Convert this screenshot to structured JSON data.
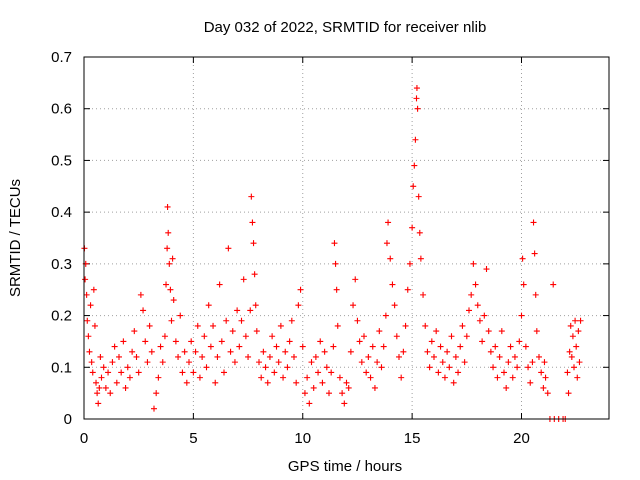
{
  "chart_data": {
    "type": "scatter",
    "title": "Day 032 of 2022, SRMTID for receiver nlib",
    "xlabel": "GPS time / hours",
    "ylabel": "SRMTID / TECUs",
    "xlim": [
      0,
      24
    ],
    "ylim": [
      0,
      0.7
    ],
    "xticks": [
      0,
      5,
      10,
      15,
      20
    ],
    "xtick_labels": [
      "0",
      "5",
      "10",
      "15",
      "20"
    ],
    "yticks": [
      0,
      0.1,
      0.2,
      0.3,
      0.4,
      0.5,
      0.6,
      0.7
    ],
    "ytick_labels": [
      "0",
      "0.1",
      "0.2",
      "0.3",
      "0.4",
      "0.5",
      "0.6",
      "0.7"
    ],
    "grid": true,
    "marker": "+",
    "color": "#ff0000",
    "series": [
      {
        "name": "SRMTID",
        "points": [
          [
            0.02,
            0.33
          ],
          [
            0.05,
            0.27
          ],
          [
            0.08,
            0.3
          ],
          [
            0.12,
            0.24
          ],
          [
            0.15,
            0.19
          ],
          [
            0.2,
            0.16
          ],
          [
            0.25,
            0.13
          ],
          [
            0.3,
            0.22
          ],
          [
            0.35,
            0.11
          ],
          [
            0.4,
            0.09
          ],
          [
            0.45,
            0.25
          ],
          [
            0.5,
            0.18
          ],
          [
            0.55,
            0.07
          ],
          [
            0.6,
            0.05
          ],
          [
            0.65,
            0.03
          ],
          [
            0.7,
            0.06
          ],
          [
            0.75,
            0.12
          ],
          [
            0.8,
            0.08
          ],
          [
            0.9,
            0.1
          ],
          [
            1.0,
            0.06
          ],
          [
            1.1,
            0.09
          ],
          [
            1.2,
            0.05
          ],
          [
            1.3,
            0.11
          ],
          [
            1.4,
            0.14
          ],
          [
            1.5,
            0.07
          ],
          [
            1.6,
            0.12
          ],
          [
            1.7,
            0.09
          ],
          [
            1.8,
            0.15
          ],
          [
            1.9,
            0.06
          ],
          [
            2.0,
            0.1
          ],
          [
            2.1,
            0.08
          ],
          [
            2.2,
            0.13
          ],
          [
            2.3,
            0.17
          ],
          [
            2.4,
            0.12
          ],
          [
            2.5,
            0.09
          ],
          [
            2.6,
            0.24
          ],
          [
            2.7,
            0.21
          ],
          [
            2.8,
            0.15
          ],
          [
            2.9,
            0.11
          ],
          [
            3.0,
            0.18
          ],
          [
            3.1,
            0.13
          ],
          [
            3.2,
            0.02
          ],
          [
            3.3,
            0.05
          ],
          [
            3.4,
            0.08
          ],
          [
            3.5,
            0.14
          ],
          [
            3.6,
            0.11
          ],
          [
            3.7,
            0.16
          ],
          [
            3.75,
            0.26
          ],
          [
            3.8,
            0.33
          ],
          [
            3.82,
            0.41
          ],
          [
            3.85,
            0.36
          ],
          [
            3.9,
            0.3
          ],
          [
            3.95,
            0.25
          ],
          [
            4.0,
            0.19
          ],
          [
            4.05,
            0.31
          ],
          [
            4.1,
            0.23
          ],
          [
            4.2,
            0.15
          ],
          [
            4.3,
            0.12
          ],
          [
            4.4,
            0.2
          ],
          [
            4.5,
            0.09
          ],
          [
            4.6,
            0.13
          ],
          [
            4.7,
            0.07
          ],
          [
            4.8,
            0.11
          ],
          [
            4.9,
            0.15
          ],
          [
            5.0,
            0.09
          ],
          [
            5.1,
            0.13
          ],
          [
            5.2,
            0.18
          ],
          [
            5.3,
            0.08
          ],
          [
            5.4,
            0.12
          ],
          [
            5.5,
            0.16
          ],
          [
            5.6,
            0.1
          ],
          [
            5.7,
            0.22
          ],
          [
            5.8,
            0.14
          ],
          [
            5.9,
            0.18
          ],
          [
            6.0,
            0.07
          ],
          [
            6.1,
            0.12
          ],
          [
            6.2,
            0.26
          ],
          [
            6.3,
            0.15
          ],
          [
            6.4,
            0.09
          ],
          [
            6.5,
            0.19
          ],
          [
            6.6,
            0.33
          ],
          [
            6.7,
            0.13
          ],
          [
            6.8,
            0.17
          ],
          [
            6.9,
            0.11
          ],
          [
            7.0,
            0.21
          ],
          [
            7.1,
            0.14
          ],
          [
            7.2,
            0.19
          ],
          [
            7.3,
            0.27
          ],
          [
            7.4,
            0.16
          ],
          [
            7.5,
            0.12
          ],
          [
            7.6,
            0.21
          ],
          [
            7.65,
            0.43
          ],
          [
            7.7,
            0.38
          ],
          [
            7.75,
            0.34
          ],
          [
            7.8,
            0.28
          ],
          [
            7.85,
            0.22
          ],
          [
            7.9,
            0.17
          ],
          [
            8.0,
            0.11
          ],
          [
            8.1,
            0.08
          ],
          [
            8.2,
            0.13
          ],
          [
            8.3,
            0.1
          ],
          [
            8.4,
            0.07
          ],
          [
            8.5,
            0.12
          ],
          [
            8.6,
            0.16
          ],
          [
            8.7,
            0.09
          ],
          [
            8.8,
            0.14
          ],
          [
            8.9,
            0.11
          ],
          [
            9.0,
            0.18
          ],
          [
            9.1,
            0.08
          ],
          [
            9.2,
            0.13
          ],
          [
            9.3,
            0.1
          ],
          [
            9.4,
            0.15
          ],
          [
            9.5,
            0.19
          ],
          [
            9.6,
            0.12
          ],
          [
            9.7,
            0.07
          ],
          [
            9.8,
            0.22
          ],
          [
            9.9,
            0.25
          ],
          [
            10.0,
            0.14
          ],
          [
            10.1,
            0.05
          ],
          [
            10.2,
            0.08
          ],
          [
            10.3,
            0.03
          ],
          [
            10.4,
            0.11
          ],
          [
            10.5,
            0.06
          ],
          [
            10.6,
            0.12
          ],
          [
            10.7,
            0.09
          ],
          [
            10.8,
            0.15
          ],
          [
            10.9,
            0.07
          ],
          [
            11.0,
            0.13
          ],
          [
            11.1,
            0.1
          ],
          [
            11.2,
            0.05
          ],
          [
            11.3,
            0.09
          ],
          [
            11.4,
            0.14
          ],
          [
            11.45,
            0.34
          ],
          [
            11.5,
            0.3
          ],
          [
            11.55,
            0.25
          ],
          [
            11.6,
            0.18
          ],
          [
            11.7,
            0.08
          ],
          [
            11.8,
            0.05
          ],
          [
            11.9,
            0.03
          ],
          [
            12.0,
            0.07
          ],
          [
            12.1,
            0.06
          ],
          [
            12.2,
            0.13
          ],
          [
            12.3,
            0.22
          ],
          [
            12.4,
            0.27
          ],
          [
            12.5,
            0.19
          ],
          [
            12.6,
            0.15
          ],
          [
            12.7,
            0.11
          ],
          [
            12.8,
            0.16
          ],
          [
            12.9,
            0.09
          ],
          [
            13.0,
            0.12
          ],
          [
            13.1,
            0.08
          ],
          [
            13.2,
            0.14
          ],
          [
            13.3,
            0.06
          ],
          [
            13.4,
            0.11
          ],
          [
            13.5,
            0.17
          ],
          [
            13.6,
            0.1
          ],
          [
            13.7,
            0.14
          ],
          [
            13.8,
            0.2
          ],
          [
            13.85,
            0.34
          ],
          [
            13.9,
            0.38
          ],
          [
            14.0,
            0.31
          ],
          [
            14.1,
            0.26
          ],
          [
            14.2,
            0.22
          ],
          [
            14.3,
            0.16
          ],
          [
            14.4,
            0.12
          ],
          [
            14.5,
            0.08
          ],
          [
            14.6,
            0.13
          ],
          [
            14.7,
            0.18
          ],
          [
            14.8,
            0.25
          ],
          [
            14.9,
            0.3
          ],
          [
            15.0,
            0.37
          ],
          [
            15.05,
            0.45
          ],
          [
            15.1,
            0.49
          ],
          [
            15.15,
            0.54
          ],
          [
            15.2,
            0.62
          ],
          [
            15.22,
            0.64
          ],
          [
            15.25,
            0.6
          ],
          [
            15.3,
            0.43
          ],
          [
            15.35,
            0.36
          ],
          [
            15.4,
            0.31
          ],
          [
            15.5,
            0.24
          ],
          [
            15.6,
            0.18
          ],
          [
            15.7,
            0.13
          ],
          [
            15.8,
            0.1
          ],
          [
            15.9,
            0.15
          ],
          [
            16.0,
            0.12
          ],
          [
            16.1,
            0.17
          ],
          [
            16.2,
            0.09
          ],
          [
            16.3,
            0.14
          ],
          [
            16.4,
            0.11
          ],
          [
            16.5,
            0.08
          ],
          [
            16.6,
            0.13
          ],
          [
            16.7,
            0.1
          ],
          [
            16.8,
            0.16
          ],
          [
            16.9,
            0.07
          ],
          [
            17.0,
            0.12
          ],
          [
            17.1,
            0.09
          ],
          [
            17.2,
            0.14
          ],
          [
            17.3,
            0.18
          ],
          [
            17.4,
            0.11
          ],
          [
            17.5,
            0.16
          ],
          [
            17.6,
            0.21
          ],
          [
            17.7,
            0.24
          ],
          [
            17.8,
            0.3
          ],
          [
            17.9,
            0.26
          ],
          [
            18.0,
            0.22
          ],
          [
            18.1,
            0.19
          ],
          [
            18.2,
            0.15
          ],
          [
            18.3,
            0.2
          ],
          [
            18.4,
            0.29
          ],
          [
            18.5,
            0.17
          ],
          [
            18.6,
            0.13
          ],
          [
            18.7,
            0.1
          ],
          [
            18.8,
            0.14
          ],
          [
            18.9,
            0.08
          ],
          [
            19.0,
            0.12
          ],
          [
            19.1,
            0.17
          ],
          [
            19.2,
            0.09
          ],
          [
            19.3,
            0.06
          ],
          [
            19.4,
            0.11
          ],
          [
            19.5,
            0.14
          ],
          [
            19.6,
            0.08
          ],
          [
            19.7,
            0.12
          ],
          [
            19.8,
            0.1
          ],
          [
            19.9,
            0.15
          ],
          [
            20.0,
            0.2
          ],
          [
            20.05,
            0.31
          ],
          [
            20.1,
            0.26
          ],
          [
            20.2,
            0.14
          ],
          [
            20.3,
            0.1
          ],
          [
            20.4,
            0.07
          ],
          [
            20.5,
            0.11
          ],
          [
            20.55,
            0.38
          ],
          [
            20.6,
            0.32
          ],
          [
            20.65,
            0.24
          ],
          [
            20.7,
            0.17
          ],
          [
            20.8,
            0.12
          ],
          [
            20.9,
            0.09
          ],
          [
            21.0,
            0.06
          ],
          [
            21.05,
            0.11
          ],
          [
            21.1,
            0.08
          ],
          [
            21.2,
            0.05
          ],
          [
            21.3,
            0.0
          ],
          [
            21.5,
            0.0
          ],
          [
            21.45,
            0.26
          ],
          [
            21.7,
            0.0
          ],
          [
            21.9,
            0.0
          ],
          [
            22.0,
            0.0
          ],
          [
            22.1,
            0.09
          ],
          [
            22.15,
            0.05
          ],
          [
            22.2,
            0.13
          ],
          [
            22.25,
            0.18
          ],
          [
            22.3,
            0.12
          ],
          [
            22.35,
            0.16
          ],
          [
            22.4,
            0.1
          ],
          [
            22.45,
            0.19
          ],
          [
            22.5,
            0.14
          ],
          [
            22.55,
            0.08
          ],
          [
            22.6,
            0.17
          ],
          [
            22.65,
            0.11
          ],
          [
            22.7,
            0.19
          ]
        ]
      }
    ]
  }
}
